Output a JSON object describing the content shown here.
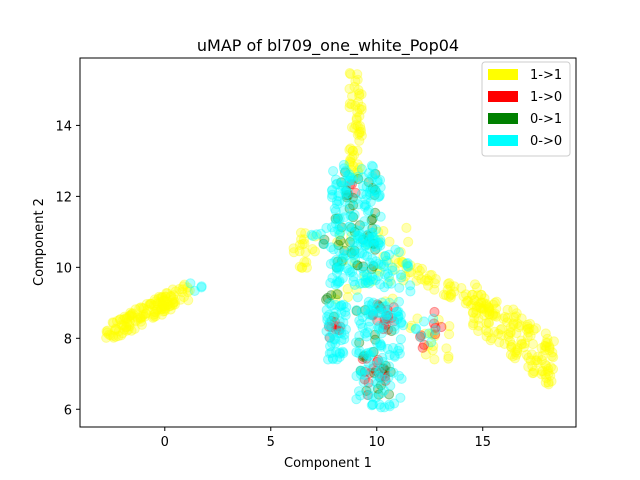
{
  "chart_data": {
    "type": "scatter",
    "title": "uMAP of bl709_one_white_Pop04",
    "xlabel": "Component 1",
    "ylabel": "Component 2",
    "xlim": [
      -4.0,
      19.4
    ],
    "ylim": [
      5.5,
      15.9
    ],
    "xticks": [
      0,
      5,
      10,
      15
    ],
    "yticks": [
      6,
      8,
      10,
      12,
      14
    ],
    "grid": false,
    "legend_position": "top-right",
    "point_alpha": 0.3,
    "series": [
      {
        "name": "1->1",
        "color": "#ffff00",
        "clusters": [
          {
            "x": [
              -2.8,
              1.2
            ],
            "y": [
              8.1,
              9.5
            ],
            "n": 140,
            "shape": "diag"
          },
          {
            "x": [
              8.7,
              9.3
            ],
            "y": [
              12.5,
              15.5
            ],
            "n": 55,
            "shape": "box"
          },
          {
            "x": [
              6.0,
              7.2
            ],
            "y": [
              10.4,
              11.0
            ],
            "n": 14,
            "shape": "box"
          },
          {
            "x": [
              6.3,
              6.8
            ],
            "y": [
              9.8,
              10.2
            ],
            "n": 6,
            "shape": "box"
          },
          {
            "x": [
              10.5,
              15.5
            ],
            "y": [
              8.8,
              10.2
            ],
            "n": 60,
            "shape": "descend"
          },
          {
            "x": [
              14.5,
              18.4
            ],
            "y": [
              6.7,
              9.2
            ],
            "n": 150,
            "shape": "blob"
          },
          {
            "x": [
              8.0,
              11.5
            ],
            "y": [
              9.0,
              11.2
            ],
            "n": 30,
            "shape": "box"
          },
          {
            "x": [
              11.5,
              13.5
            ],
            "y": [
              7.3,
              8.6
            ],
            "n": 18,
            "shape": "box"
          }
        ]
      },
      {
        "name": "1->0",
        "color": "#ff0000",
        "clusters": [
          {
            "x": [
              7.7,
              8.5
            ],
            "y": [
              8.0,
              8.5
            ],
            "n": 10,
            "shape": "box"
          },
          {
            "x": [
              9.8,
              10.9
            ],
            "y": [
              8.2,
              9.0
            ],
            "n": 18,
            "shape": "box"
          },
          {
            "x": [
              9.3,
              10.5
            ],
            "y": [
              6.4,
              7.6
            ],
            "n": 18,
            "shape": "box"
          },
          {
            "x": [
              8.6,
              9.2
            ],
            "y": [
              12.0,
              12.4
            ],
            "n": 4,
            "shape": "box"
          },
          {
            "x": [
              12.7,
              13.5
            ],
            "y": [
              8.0,
              8.8
            ],
            "n": 5,
            "shape": "box"
          },
          {
            "x": [
              11.5,
              12.5
            ],
            "y": [
              7.7,
              8.1
            ],
            "n": 4,
            "shape": "box"
          }
        ]
      },
      {
        "name": "0->1",
        "color": "#008000",
        "clusters": [
          {
            "x": [
              8.0,
              10.0
            ],
            "y": [
              9.8,
              12.8
            ],
            "n": 45,
            "shape": "box"
          },
          {
            "x": [
              7.6,
              8.2
            ],
            "y": [
              8.6,
              9.4
            ],
            "n": 5,
            "shape": "box"
          },
          {
            "x": [
              8.9,
              10.8
            ],
            "y": [
              6.4,
              9.0
            ],
            "n": 20,
            "shape": "box"
          },
          {
            "x": [
              7.2,
              7.6
            ],
            "y": [
              10.4,
              10.8
            ],
            "n": 2,
            "shape": "box"
          }
        ]
      },
      {
        "name": "0->0",
        "color": "#00ffff",
        "clusters": [
          {
            "x": [
              7.8,
              10.2
            ],
            "y": [
              9.5,
              12.9
            ],
            "n": 190,
            "shape": "box"
          },
          {
            "x": [
              7.6,
              8.6
            ],
            "y": [
              7.4,
              9.0
            ],
            "n": 50,
            "shape": "box"
          },
          {
            "x": [
              9.0,
              11.2
            ],
            "y": [
              6.0,
              9.2
            ],
            "n": 110,
            "shape": "box"
          },
          {
            "x": [
              10.3,
              11.6
            ],
            "y": [
              9.2,
              10.5
            ],
            "n": 25,
            "shape": "box"
          },
          {
            "x": [
              11.0,
              13.0
            ],
            "y": [
              7.5,
              8.6
            ],
            "n": 10,
            "shape": "box"
          },
          {
            "x": [
              6.8,
              7.8
            ],
            "y": [
              10.5,
              11.2
            ],
            "n": 6,
            "shape": "box"
          },
          {
            "x": [
              1.2,
              1.9
            ],
            "y": [
              9.3,
              9.7
            ],
            "n": 4,
            "shape": "box"
          },
          {
            "x": [
              9.5,
              10.6
            ],
            "y": [
              8.6,
              9.2
            ],
            "n": 12,
            "shape": "box"
          }
        ]
      }
    ]
  }
}
